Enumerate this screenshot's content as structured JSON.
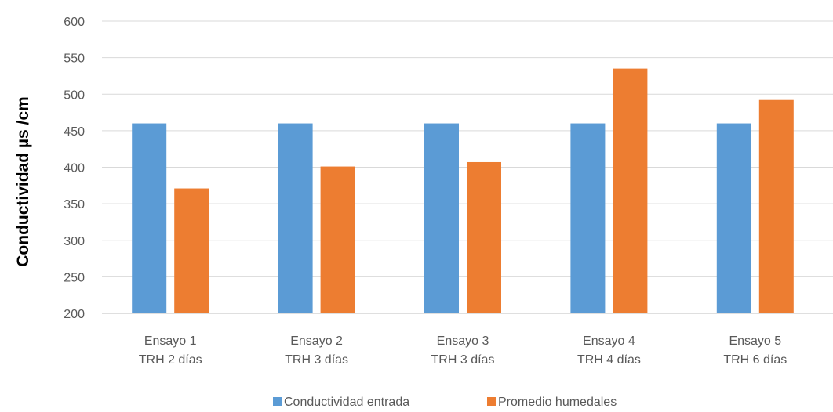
{
  "chart_data": {
    "type": "bar",
    "title": "",
    "xlabel": "",
    "ylabel": "Conductividad µs /cm",
    "ylim": [
      200,
      600
    ],
    "yticks": [
      200,
      250,
      300,
      350,
      400,
      450,
      500,
      550,
      600
    ],
    "grid": true,
    "legend_position": "bottom",
    "categories": [
      [
        "Ensayo 1",
        "TRH 2 días"
      ],
      [
        "Ensayo 2",
        "TRH 3 días"
      ],
      [
        "Ensayo 3",
        "TRH 3 días"
      ],
      [
        "Ensayo 4",
        "TRH 4 días"
      ],
      [
        "Ensayo 5",
        "TRH 6 días"
      ]
    ],
    "series": [
      {
        "name": "Conductividad entrada",
        "color": "#5B9BD5",
        "values": [
          460,
          460,
          460,
          460,
          460
        ]
      },
      {
        "name": "Promedio humedales",
        "color": "#ED7D31",
        "values": [
          371,
          401,
          407,
          535,
          492
        ]
      }
    ]
  }
}
